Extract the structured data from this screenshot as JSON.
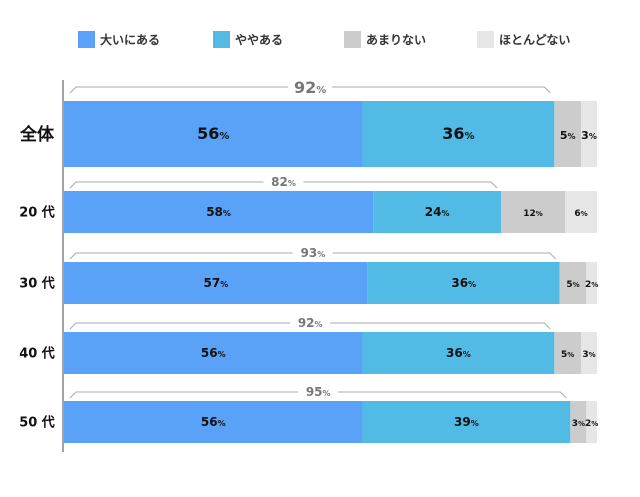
{
  "chart_data": {
    "type": "bar",
    "orientation": "horizontal",
    "stacked": true,
    "legend_position": "top",
    "categories": [
      "全体",
      "20 代",
      "30 代",
      "40 代",
      "50 代"
    ],
    "series": [
      {
        "name": "大いにある",
        "color": "#5aa2f7",
        "values": [
          56,
          58,
          57,
          56,
          56
        ],
        "labels": [
          "56%",
          "58%",
          "57%",
          "56%",
          "56%"
        ]
      },
      {
        "name": "ややある",
        "color": "#52bbe5",
        "values": [
          36,
          24,
          36,
          36,
          39
        ],
        "labels": [
          "36%",
          "24%",
          "36%",
          "36%",
          "39%"
        ]
      },
      {
        "name": "あまりない",
        "color": "#cccccc",
        "values": [
          5,
          12,
          5,
          5,
          3
        ],
        "labels": [
          "5%",
          "12%",
          "5%",
          "5%",
          "3%"
        ]
      },
      {
        "name": "ほとんどない",
        "color": "#e6e6e6",
        "values": [
          3,
          6,
          2,
          3,
          2
        ],
        "labels": [
          "3%",
          "6%",
          "2%",
          "3%",
          "2%"
        ]
      }
    ],
    "bracket_totals": [
      "92%",
      "82%",
      "93%",
      "92%",
      "95%"
    ],
    "xlim": [
      0,
      100
    ]
  }
}
